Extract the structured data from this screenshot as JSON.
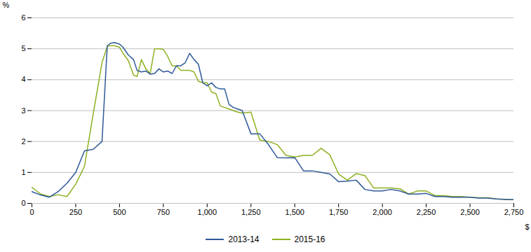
{
  "chart_data": {
    "type": "line",
    "xlabel": "$",
    "ylabel": "%",
    "x": [
      0,
      50,
      100,
      150,
      200,
      250,
      300,
      350,
      400,
      430,
      450,
      470,
      500,
      520,
      550,
      580,
      600,
      625,
      650,
      675,
      700,
      725,
      750,
      775,
      800,
      825,
      850,
      875,
      900,
      925,
      950,
      975,
      1000,
      1025,
      1050,
      1075,
      1100,
      1125,
      1150,
      1175,
      1200,
      1250,
      1300,
      1350,
      1400,
      1450,
      1500,
      1550,
      1600,
      1650,
      1700,
      1750,
      1800,
      1850,
      1900,
      1950,
      2000,
      2050,
      2100,
      2150,
      2200,
      2250,
      2300,
      2350,
      2400,
      2450,
      2500,
      2550,
      2600,
      2650,
      2700,
      2750
    ],
    "series": [
      {
        "name": "2013-14",
        "color": "#2e5999",
        "values": [
          0.38,
          0.27,
          0.2,
          0.38,
          0.65,
          1.0,
          1.7,
          1.75,
          2.0,
          5.1,
          5.18,
          5.2,
          5.15,
          5.05,
          4.8,
          4.65,
          4.3,
          4.25,
          4.28,
          4.18,
          4.2,
          4.35,
          4.25,
          4.28,
          4.2,
          4.45,
          4.45,
          4.55,
          4.85,
          4.65,
          4.5,
          3.9,
          3.8,
          3.9,
          3.75,
          3.7,
          3.7,
          3.2,
          3.1,
          3.05,
          3.0,
          2.25,
          2.25,
          1.9,
          1.48,
          1.47,
          1.48,
          1.05,
          1.05,
          1.0,
          0.95,
          0.7,
          0.72,
          0.75,
          0.45,
          0.4,
          0.4,
          0.45,
          0.4,
          0.3,
          0.3,
          0.32,
          0.22,
          0.22,
          0.2,
          0.2,
          0.2,
          0.17,
          0.17,
          0.14,
          0.13,
          0.12
        ]
      },
      {
        "name": "2015-16",
        "color": "#8db021",
        "values": [
          0.52,
          0.3,
          0.22,
          0.28,
          0.22,
          0.62,
          1.2,
          2.9,
          4.55,
          5.08,
          5.1,
          5.1,
          5.05,
          4.85,
          4.62,
          4.15,
          4.1,
          4.65,
          4.35,
          4.2,
          5.0,
          5.0,
          4.98,
          4.75,
          4.45,
          4.45,
          4.3,
          4.3,
          4.3,
          4.25,
          3.95,
          3.9,
          3.9,
          3.6,
          3.55,
          3.15,
          3.1,
          3.05,
          3.0,
          2.95,
          2.92,
          2.95,
          2.05,
          2.0,
          1.9,
          1.55,
          1.5,
          1.55,
          1.55,
          1.78,
          1.57,
          0.95,
          0.75,
          0.96,
          0.9,
          0.5,
          0.5,
          0.5,
          0.47,
          0.3,
          0.4,
          0.4,
          0.25,
          0.25,
          0.22,
          0.22,
          0.2,
          0.18,
          0.18,
          0.15,
          0.12,
          0.12
        ]
      }
    ],
    "xlim": [
      0,
      2750
    ],
    "xticks": [
      0,
      250,
      500,
      750,
      {
        "value": 1000,
        "label": "1,000"
      },
      {
        "value": 1250,
        "label": "1,250"
      },
      {
        "value": 1500,
        "label": "1,500"
      },
      {
        "value": 1750,
        "label": "1,750"
      },
      {
        "value": 2000,
        "label": "2,000"
      },
      {
        "value": 2250,
        "label": "2,250"
      },
      {
        "value": 2500,
        "label": "2,500"
      },
      {
        "value": 2750,
        "label": "2,750"
      }
    ],
    "ylim": [
      0,
      6
    ],
    "yticks": [
      0,
      1,
      2,
      3,
      4,
      5,
      6
    ],
    "grid": "y",
    "legend": "bottom"
  }
}
